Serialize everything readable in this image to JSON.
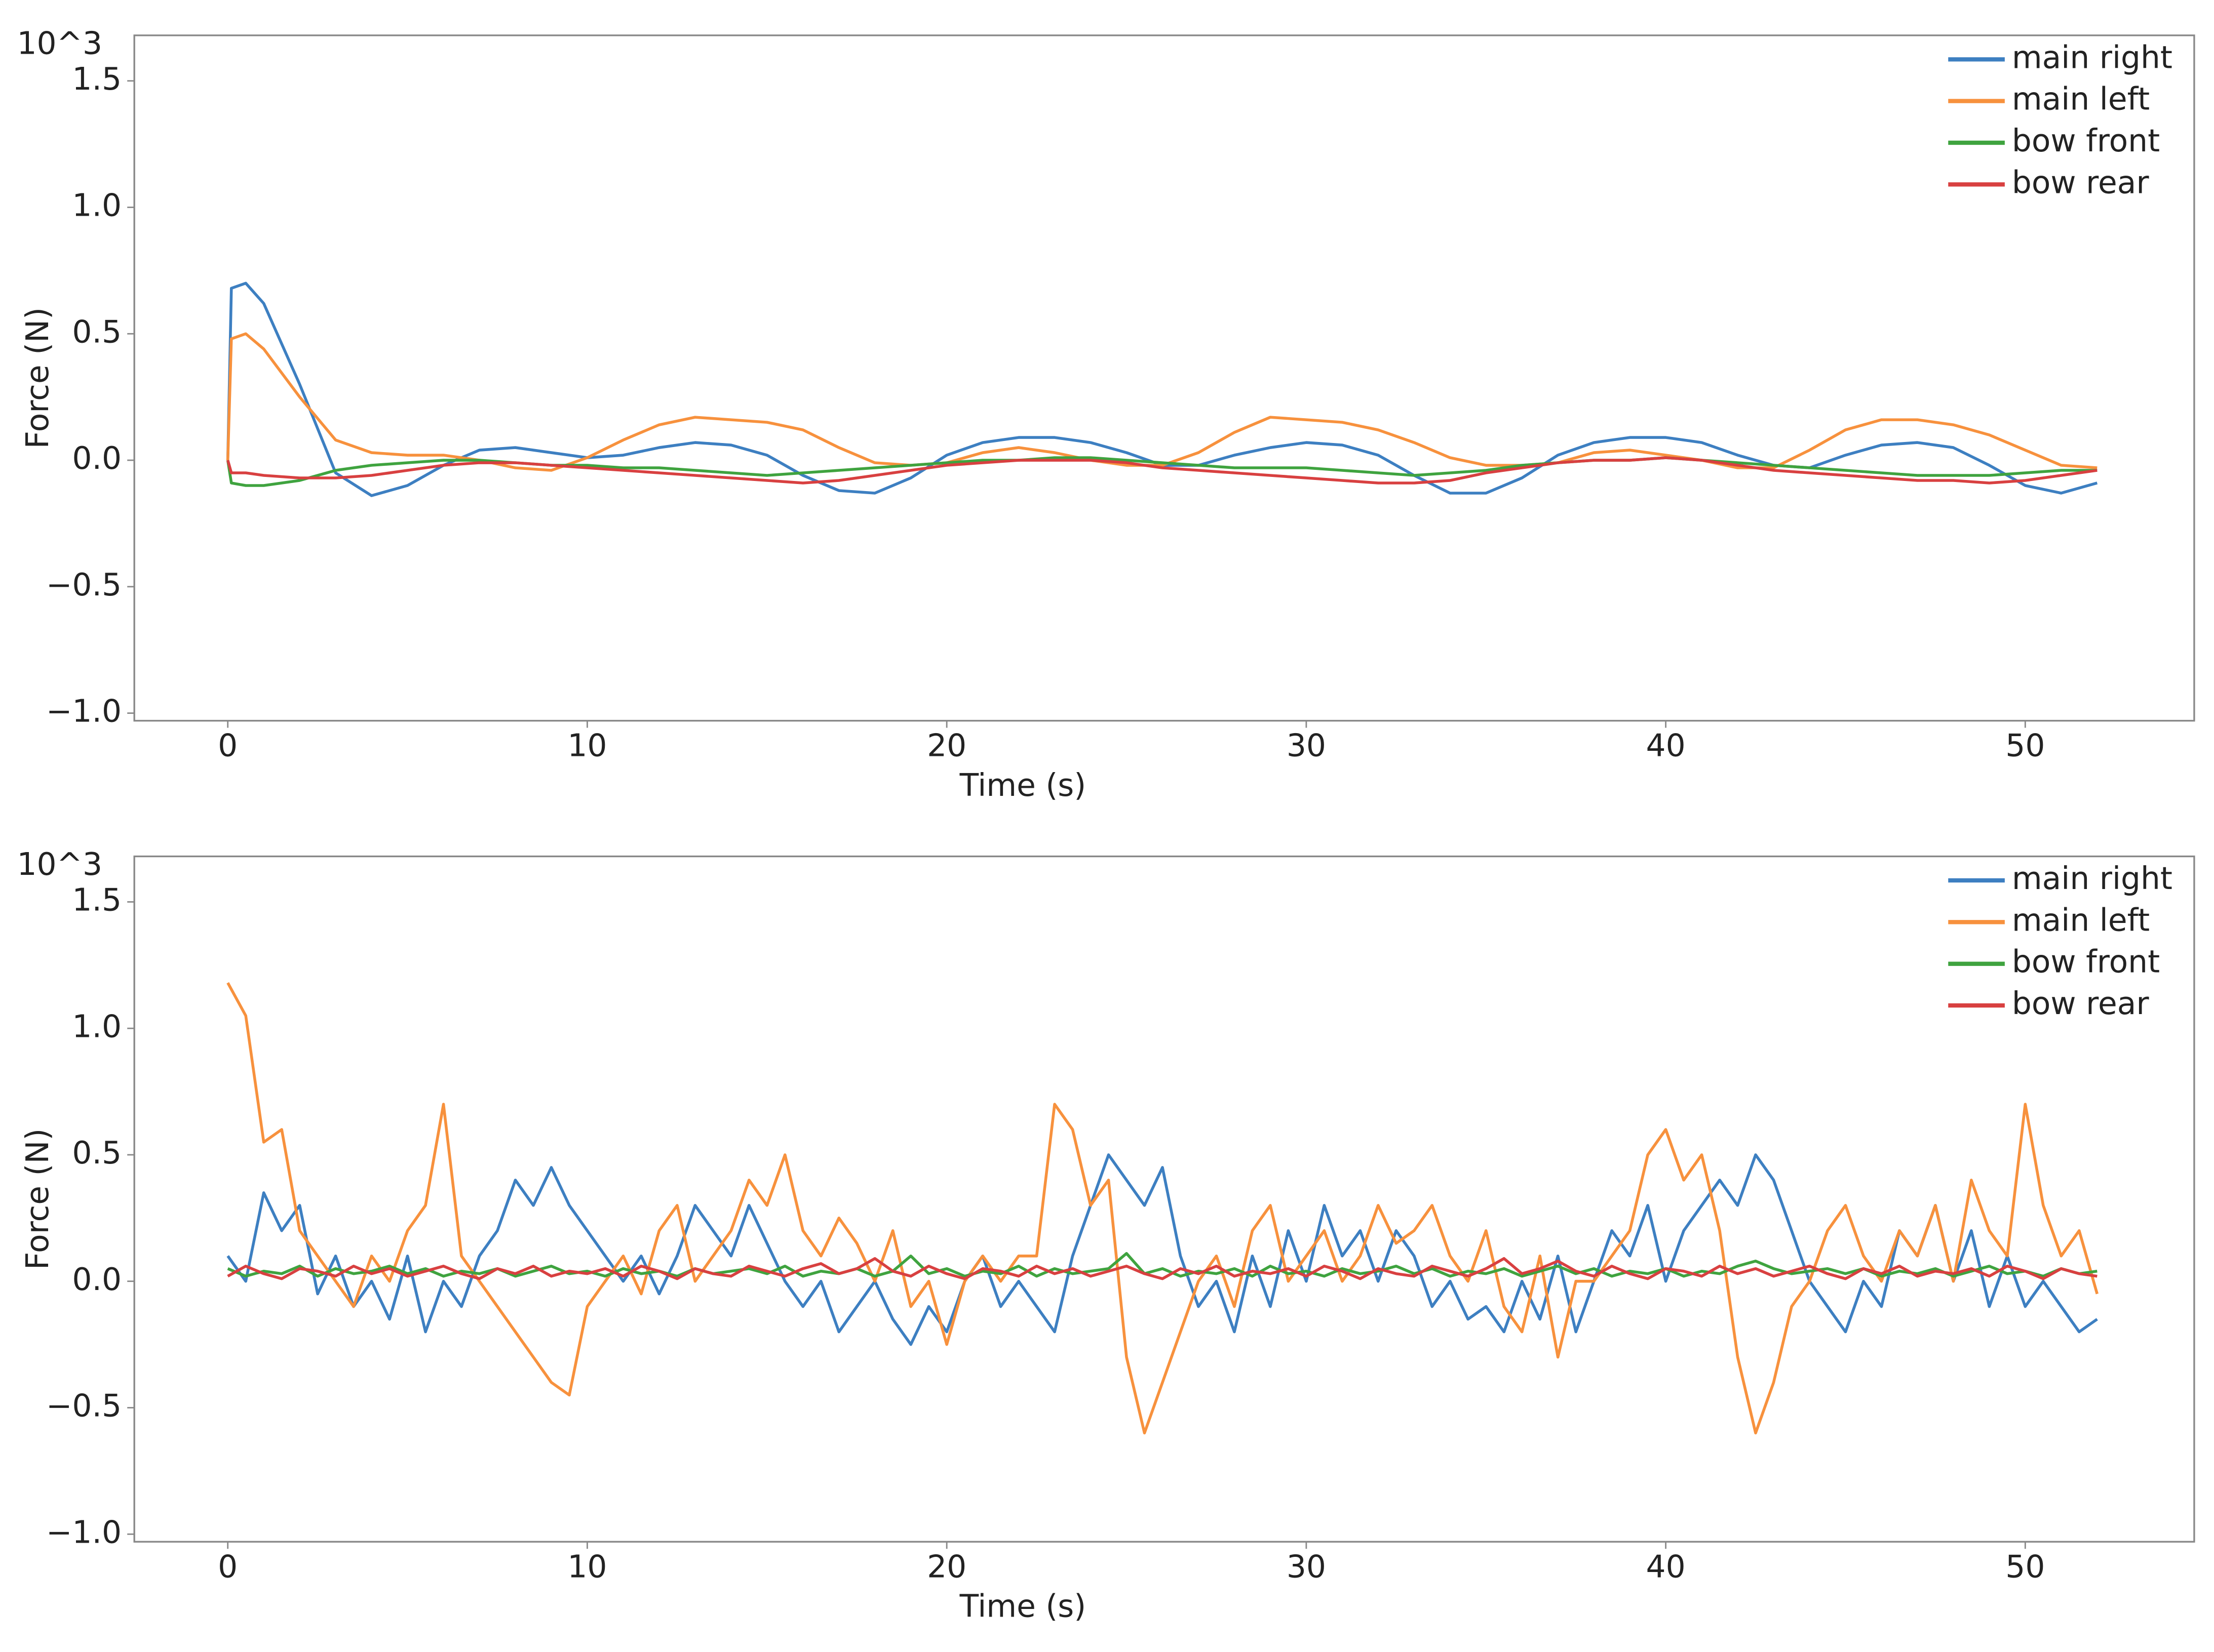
{
  "chart_data": [
    {
      "type": "line",
      "xlabel": "Time (s)",
      "ylabel": "Force (N)",
      "annotation": "10^3",
      "legend": "upper right",
      "xlim": [
        -2.6,
        54.7
      ],
      "ylim": [
        -1.03,
        1.68
      ],
      "xticks": [
        0,
        10,
        20,
        30,
        40,
        50
      ],
      "yticks": [
        {
          "value": -1.0,
          "label": "−1.0"
        },
        {
          "value": -0.5,
          "label": "−0.5"
        },
        {
          "value": 0,
          "label": "0.0"
        },
        0.5,
        {
          "value": 1.0,
          "label": "1.0"
        },
        1.5
      ],
      "x": [
        0,
        0.1,
        0.5,
        1,
        2,
        3,
        4,
        5,
        6,
        7,
        8,
        9,
        10,
        11,
        12,
        13,
        14,
        15,
        16,
        17,
        18,
        19,
        20,
        21,
        22,
        23,
        24,
        25,
        26,
        27,
        28,
        29,
        30,
        31,
        32,
        33,
        34,
        35,
        36,
        37,
        38,
        39,
        40,
        41,
        42,
        43,
        44,
        45,
        46,
        47,
        48,
        49,
        50,
        51,
        52
      ],
      "series": [
        {
          "name": "main right",
          "color": "#3d7fc1",
          "values": [
            0.0,
            0.68,
            0.7,
            0.62,
            0.3,
            -0.05,
            -0.14,
            -0.1,
            -0.02,
            0.04,
            0.05,
            0.03,
            0.01,
            0.02,
            0.05,
            0.07,
            0.06,
            0.02,
            -0.06,
            -0.12,
            -0.13,
            -0.07,
            0.02,
            0.07,
            0.09,
            0.09,
            0.07,
            0.03,
            -0.02,
            -0.02,
            0.02,
            0.05,
            0.07,
            0.06,
            0.02,
            -0.06,
            -0.13,
            -0.13,
            -0.07,
            0.02,
            0.07,
            0.09,
            0.09,
            0.07,
            0.02,
            -0.02,
            -0.03,
            0.02,
            0.06,
            0.07,
            0.05,
            -0.02,
            -0.1,
            -0.13,
            -0.09
          ]
        },
        {
          "name": "main left",
          "color": "#f7913d",
          "values": [
            0.0,
            0.48,
            0.5,
            0.44,
            0.25,
            0.08,
            0.03,
            0.02,
            0.02,
            0.0,
            -0.03,
            -0.04,
            0.01,
            0.08,
            0.14,
            0.17,
            0.16,
            0.15,
            0.12,
            0.05,
            -0.01,
            -0.02,
            -0.01,
            0.03,
            0.05,
            0.03,
            0.0,
            -0.02,
            -0.02,
            0.03,
            0.11,
            0.17,
            0.16,
            0.15,
            0.12,
            0.07,
            0.01,
            -0.02,
            -0.02,
            -0.01,
            0.03,
            0.04,
            0.02,
            0.0,
            -0.03,
            -0.03,
            0.04,
            0.12,
            0.16,
            0.16,
            0.14,
            0.1,
            0.04,
            -0.02,
            -0.03
          ]
        },
        {
          "name": "bow front",
          "color": "#3fa33f",
          "values": [
            0.0,
            -0.09,
            -0.1,
            -0.1,
            -0.08,
            -0.04,
            -0.02,
            -0.01,
            0.0,
            0.0,
            -0.01,
            -0.02,
            -0.02,
            -0.03,
            -0.03,
            -0.04,
            -0.05,
            -0.06,
            -0.05,
            -0.04,
            -0.03,
            -0.02,
            -0.01,
            0.0,
            0.0,
            0.01,
            0.01,
            0.0,
            -0.01,
            -0.02,
            -0.03,
            -0.03,
            -0.03,
            -0.04,
            -0.05,
            -0.06,
            -0.05,
            -0.04,
            -0.02,
            -0.01,
            0.0,
            0.0,
            0.01,
            0.0,
            -0.01,
            -0.02,
            -0.03,
            -0.04,
            -0.05,
            -0.06,
            -0.06,
            -0.06,
            -0.05,
            -0.04,
            -0.04
          ]
        },
        {
          "name": "bow rear",
          "color": "#d84040",
          "values": [
            0.0,
            -0.05,
            -0.05,
            -0.06,
            -0.07,
            -0.07,
            -0.06,
            -0.04,
            -0.02,
            -0.01,
            -0.01,
            -0.02,
            -0.03,
            -0.04,
            -0.05,
            -0.06,
            -0.07,
            -0.08,
            -0.09,
            -0.08,
            -0.06,
            -0.04,
            -0.02,
            -0.01,
            0.0,
            0.0,
            0.0,
            -0.01,
            -0.03,
            -0.04,
            -0.05,
            -0.06,
            -0.07,
            -0.08,
            -0.09,
            -0.09,
            -0.08,
            -0.05,
            -0.03,
            -0.01,
            0.0,
            0.0,
            0.01,
            0.0,
            -0.02,
            -0.04,
            -0.05,
            -0.06,
            -0.07,
            -0.08,
            -0.08,
            -0.09,
            -0.08,
            -0.06,
            -0.04
          ]
        }
      ]
    },
    {
      "type": "line",
      "xlabel": "Time (s)",
      "ylabel": "Force (N)",
      "annotation": "10^3",
      "legend": "upper right",
      "xlim": [
        -2.6,
        54.7
      ],
      "ylim": [
        -1.03,
        1.68
      ],
      "xticks": [
        0,
        10,
        20,
        30,
        40,
        50
      ],
      "yticks": [
        {
          "value": -1.0,
          "label": "−1.0"
        },
        {
          "value": -0.5,
          "label": "−0.5"
        },
        {
          "value": 0,
          "label": "0.0"
        },
        0.5,
        {
          "value": 1.0,
          "label": "1.0"
        },
        1.5
      ],
      "x": [
        0,
        0.5,
        1,
        1.5,
        2,
        2.5,
        3,
        3.5,
        4,
        4.5,
        5,
        5.5,
        6,
        6.5,
        7,
        7.5,
        8,
        8.5,
        9,
        9.5,
        10,
        10.5,
        11,
        11.5,
        12,
        12.5,
        13,
        13.5,
        14,
        14.5,
        15,
        15.5,
        16,
        16.5,
        17,
        17.5,
        18,
        18.5,
        19,
        19.5,
        20,
        20.5,
        21,
        21.5,
        22,
        22.5,
        23,
        23.5,
        24,
        24.5,
        25,
        25.5,
        26,
        26.5,
        27,
        27.5,
        28,
        28.5,
        29,
        29.5,
        30,
        30.5,
        31,
        31.5,
        32,
        32.5,
        33,
        33.5,
        34,
        34.5,
        35,
        35.5,
        36,
        36.5,
        37,
        37.5,
        38,
        38.5,
        39,
        39.5,
        40,
        40.5,
        41,
        41.5,
        42,
        42.5,
        43,
        43.5,
        44,
        44.5,
        45,
        45.5,
        46,
        46.5,
        47,
        47.5,
        48,
        48.5,
        49,
        49.5,
        50,
        50.5,
        51,
        51.5,
        52
      ],
      "series": [
        {
          "name": "main right",
          "color": "#3d7fc1",
          "values": [
            0.1,
            0.0,
            0.35,
            0.2,
            0.3,
            -0.05,
            0.1,
            -0.1,
            0.0,
            -0.15,
            0.1,
            -0.2,
            0.0,
            -0.1,
            0.1,
            0.2,
            0.4,
            0.3,
            0.45,
            0.3,
            0.2,
            0.1,
            0.0,
            0.1,
            -0.05,
            0.1,
            0.3,
            0.2,
            0.1,
            0.3,
            0.15,
            0.0,
            -0.1,
            0.0,
            -0.2,
            -0.1,
            0.0,
            -0.15,
            -0.25,
            -0.1,
            -0.2,
            0.0,
            0.1,
            -0.1,
            0.0,
            -0.1,
            -0.2,
            0.1,
            0.3,
            0.5,
            0.4,
            0.3,
            0.45,
            0.1,
            -0.1,
            0.0,
            -0.2,
            0.1,
            -0.1,
            0.2,
            0.0,
            0.3,
            0.1,
            0.2,
            0.0,
            0.2,
            0.1,
            -0.1,
            0.0,
            -0.15,
            -0.1,
            -0.2,
            0.0,
            -0.15,
            0.1,
            -0.2,
            0.0,
            0.2,
            0.1,
            0.3,
            0.0,
            0.2,
            0.3,
            0.4,
            0.3,
            0.5,
            0.4,
            0.2,
            0.0,
            -0.1,
            -0.2,
            0.0,
            -0.1,
            0.2,
            0.1,
            0.3,
            0.0,
            0.2,
            -0.1,
            0.1,
            -0.1,
            0.0,
            -0.1,
            -0.2,
            -0.15
          ]
        },
        {
          "name": "main left",
          "color": "#f7913d",
          "values": [
            1.18,
            1.05,
            0.55,
            0.6,
            0.2,
            0.1,
            0.0,
            -0.1,
            0.1,
            0.0,
            0.2,
            0.3,
            0.7,
            0.1,
            0.0,
            -0.1,
            -0.2,
            -0.3,
            -0.4,
            -0.45,
            -0.1,
            0.0,
            0.1,
            -0.05,
            0.2,
            0.3,
            0.0,
            0.1,
            0.2,
            0.4,
            0.3,
            0.5,
            0.2,
            0.1,
            0.25,
            0.15,
            0.0,
            0.2,
            -0.1,
            0.0,
            -0.25,
            0.0,
            0.1,
            0.0,
            0.1,
            0.1,
            0.7,
            0.6,
            0.3,
            0.4,
            -0.3,
            -0.6,
            -0.4,
            -0.2,
            0.0,
            0.1,
            -0.1,
            0.2,
            0.3,
            0.0,
            0.1,
            0.2,
            0.0,
            0.1,
            0.3,
            0.15,
            0.2,
            0.3,
            0.1,
            0.0,
            0.2,
            -0.1,
            -0.2,
            0.1,
            -0.3,
            0.0,
            0.0,
            0.1,
            0.2,
            0.5,
            0.6,
            0.4,
            0.5,
            0.2,
            -0.3,
            -0.6,
            -0.4,
            -0.1,
            0.0,
            0.2,
            0.3,
            0.1,
            0.0,
            0.2,
            0.1,
            0.3,
            0.0,
            0.4,
            0.2,
            0.1,
            0.7,
            0.3,
            0.1,
            0.2,
            -0.05
          ]
        },
        {
          "name": "bow front",
          "color": "#3fa33f",
          "values": [
            0.05,
            0.02,
            0.04,
            0.03,
            0.06,
            0.02,
            0.05,
            0.03,
            0.04,
            0.06,
            0.03,
            0.05,
            0.02,
            0.04,
            0.03,
            0.05,
            0.02,
            0.04,
            0.06,
            0.03,
            0.04,
            0.02,
            0.05,
            0.03,
            0.04,
            0.02,
            0.05,
            0.03,
            0.04,
            0.05,
            0.03,
            0.06,
            0.02,
            0.04,
            0.03,
            0.05,
            0.02,
            0.04,
            0.1,
            0.03,
            0.05,
            0.02,
            0.04,
            0.03,
            0.06,
            0.02,
            0.05,
            0.03,
            0.04,
            0.05,
            0.11,
            0.03,
            0.05,
            0.02,
            0.04,
            0.03,
            0.05,
            0.02,
            0.06,
            0.03,
            0.04,
            0.02,
            0.05,
            0.03,
            0.04,
            0.06,
            0.03,
            0.05,
            0.02,
            0.04,
            0.03,
            0.05,
            0.02,
            0.04,
            0.06,
            0.03,
            0.05,
            0.02,
            0.04,
            0.03,
            0.05,
            0.02,
            0.04,
            0.03,
            0.06,
            0.08,
            0.05,
            0.03,
            0.04,
            0.05,
            0.03,
            0.05,
            0.02,
            0.04,
            0.03,
            0.05,
            0.02,
            0.04,
            0.06,
            0.03,
            0.04,
            0.02,
            0.05,
            0.03,
            0.04
          ]
        },
        {
          "name": "bow rear",
          "color": "#d84040",
          "values": [
            0.02,
            0.06,
            0.03,
            0.01,
            0.05,
            0.04,
            0.02,
            0.06,
            0.03,
            0.05,
            0.02,
            0.04,
            0.06,
            0.03,
            0.01,
            0.05,
            0.03,
            0.06,
            0.02,
            0.04,
            0.03,
            0.05,
            0.02,
            0.06,
            0.04,
            0.01,
            0.05,
            0.03,
            0.02,
            0.06,
            0.04,
            0.02,
            0.05,
            0.07,
            0.03,
            0.05,
            0.09,
            0.04,
            0.02,
            0.06,
            0.03,
            0.01,
            0.05,
            0.04,
            0.02,
            0.06,
            0.03,
            0.05,
            0.02,
            0.04,
            0.06,
            0.03,
            0.01,
            0.05,
            0.03,
            0.06,
            0.02,
            0.04,
            0.03,
            0.05,
            0.02,
            0.06,
            0.04,
            0.01,
            0.05,
            0.03,
            0.02,
            0.06,
            0.04,
            0.02,
            0.05,
            0.09,
            0.03,
            0.05,
            0.08,
            0.04,
            0.02,
            0.06,
            0.03,
            0.01,
            0.05,
            0.04,
            0.02,
            0.06,
            0.03,
            0.05,
            0.02,
            0.04,
            0.06,
            0.03,
            0.01,
            0.05,
            0.03,
            0.06,
            0.02,
            0.04,
            0.03,
            0.05,
            0.02,
            0.06,
            0.04,
            0.01,
            0.05,
            0.03,
            0.02
          ]
        }
      ]
    }
  ]
}
